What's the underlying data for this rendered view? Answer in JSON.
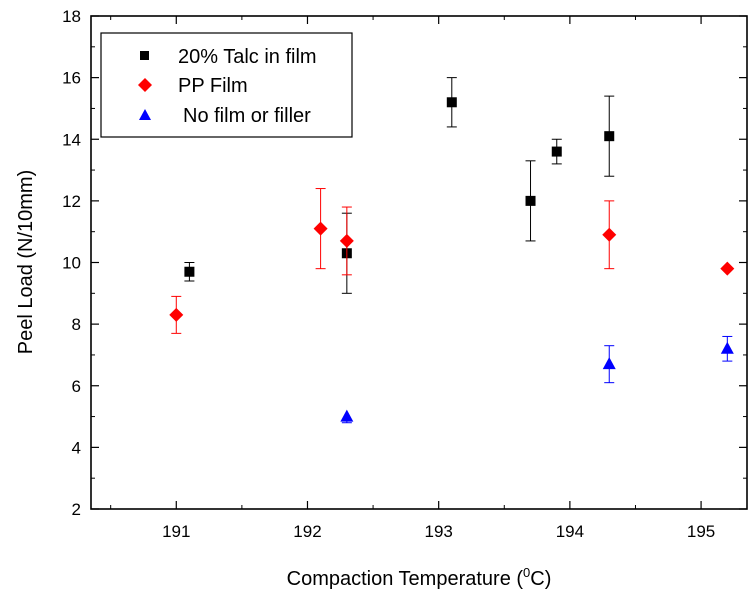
{
  "chart_data": {
    "type": "scatter",
    "xlabel": "Compaction Temperature (",
    "xlabel_sup": "0",
    "xlabel_suffix": "C)",
    "ylabel": "Peel Load (N/10mm)",
    "xlim": [
      190.35,
      195.35
    ],
    "ylim": [
      2,
      18
    ],
    "xticks": [
      191,
      192,
      193,
      194,
      195
    ],
    "yticks": [
      2,
      4,
      6,
      8,
      10,
      12,
      14,
      16,
      18
    ],
    "grid": false,
    "legend_position": "top-left",
    "series": [
      {
        "name": "20% Talc in film",
        "marker": "square",
        "color": "#000000",
        "error_color": "#000000",
        "points": [
          {
            "x": 191.1,
            "y": 9.7,
            "err_low": 0.3,
            "err_high": 0.3
          },
          {
            "x": 192.3,
            "y": 10.3,
            "err_low": 1.3,
            "err_high": 1.3
          },
          {
            "x": 193.1,
            "y": 15.2,
            "err_low": 0.8,
            "err_high": 0.8
          },
          {
            "x": 193.7,
            "y": 12.0,
            "err_low": 1.3,
            "err_high": 1.3
          },
          {
            "x": 193.9,
            "y": 13.6,
            "err_low": 0.4,
            "err_high": 0.4
          },
          {
            "x": 194.3,
            "y": 14.1,
            "err_low": 1.3,
            "err_high": 1.3
          }
        ]
      },
      {
        "name": "PP Film",
        "marker": "diamond",
        "color": "#ff0000",
        "error_color": "#ff0000",
        "points": [
          {
            "x": 191.0,
            "y": 8.3,
            "err_low": 0.6,
            "err_high": 0.6
          },
          {
            "x": 192.1,
            "y": 11.1,
            "err_low": 1.3,
            "err_high": 1.3
          },
          {
            "x": 192.3,
            "y": 10.7,
            "err_low": 1.1,
            "err_high": 1.1
          },
          {
            "x": 194.3,
            "y": 10.9,
            "err_low": 1.1,
            "err_high": 1.1
          },
          {
            "x": 195.2,
            "y": 9.8,
            "err_low": 0,
            "err_high": 0
          }
        ]
      },
      {
        "name": "No film or filler",
        "marker": "triangle",
        "color": "#0000ff",
        "error_color": "#0000ff",
        "points": [
          {
            "x": 192.3,
            "y": 5.0,
            "err_low": 0.2,
            "err_high": 0
          },
          {
            "x": 194.3,
            "y": 6.7,
            "err_low": 0.6,
            "err_high": 0.6
          },
          {
            "x": 195.2,
            "y": 7.2,
            "err_low": 0.4,
            "err_high": 0.4
          }
        ]
      }
    ]
  }
}
